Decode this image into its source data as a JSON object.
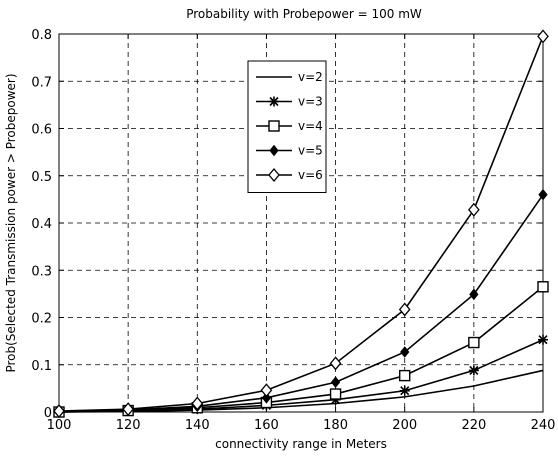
{
  "chart_data": {
    "type": "line",
    "title": "Probability with Probepower = 100 mW",
    "xlabel": "connectivity range in Meters",
    "ylabel": "Prob(Selected Transmission power > Probepower)",
    "x": [
      100,
      120,
      140,
      160,
      180,
      200,
      220,
      240
    ],
    "xlim": [
      100,
      240
    ],
    "ylim": [
      0,
      0.8
    ],
    "xticks": [
      "100",
      "120",
      "140",
      "160",
      "180",
      "200",
      "220",
      "240"
    ],
    "yticks": [
      "0",
      "0.1",
      "0.2",
      "0.3",
      "0.4",
      "0.5",
      "0.6",
      "0.7",
      "0.8"
    ],
    "grid": true,
    "legend_position": "top-center",
    "series": [
      {
        "name": "v=2",
        "marker": "none",
        "values": [
          0.0,
          0.001,
          0.004,
          0.009,
          0.018,
          0.032,
          0.055,
          0.088
        ]
      },
      {
        "name": "v=3",
        "marker": "star",
        "values": [
          0.0,
          0.002,
          0.006,
          0.014,
          0.026,
          0.045,
          0.088,
          0.153
        ]
      },
      {
        "name": "v=4",
        "marker": "square",
        "values": [
          0.0,
          0.003,
          0.009,
          0.02,
          0.038,
          0.077,
          0.147,
          0.265
        ]
      },
      {
        "name": "v=5",
        "marker": "diamond-filled",
        "values": [
          0.0,
          0.004,
          0.012,
          0.03,
          0.063,
          0.127,
          0.249,
          0.46
        ]
      },
      {
        "name": "v=6",
        "marker": "diamond",
        "values": [
          0.002,
          0.006,
          0.018,
          0.046,
          0.103,
          0.217,
          0.428,
          0.795
        ]
      }
    ]
  }
}
